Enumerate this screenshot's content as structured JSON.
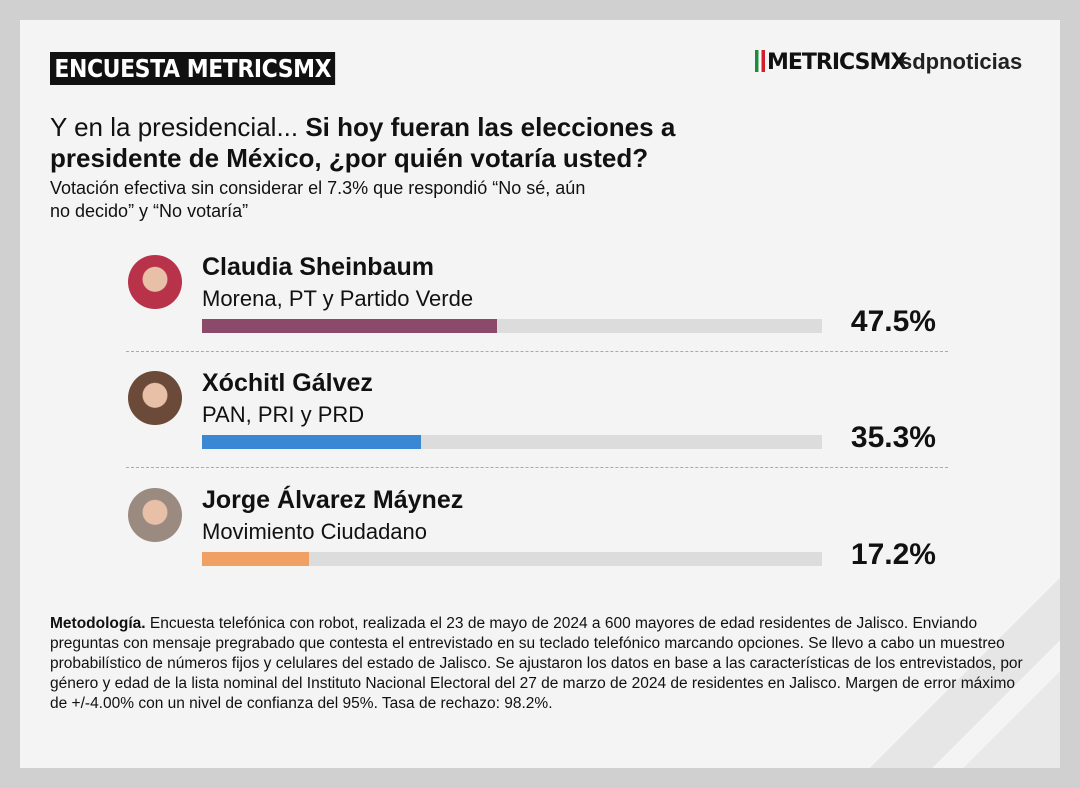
{
  "header": {
    "badge": "ENCUESTA METRICSMX",
    "logo_metrics": "METRICSMX",
    "logo_sdp": "sdpnoticias"
  },
  "question": {
    "lead": "Y en la presidencial... ",
    "bold": "Si hoy fueran las elecciones a presidente de México, ¿por quién votaría usted?"
  },
  "subtitle": "Votación efectiva sin considerar el 7.3% que respondió “No sé, aún no decido” y “No votaría”",
  "chart_data": {
    "type": "bar",
    "orientation": "horizontal",
    "xlim": [
      0,
      100
    ],
    "categories": [
      "Claudia Sheinbaum",
      "Xóchitl Gálvez",
      "Jorge Álvarez Máynez"
    ],
    "parties": [
      "Morena, PT y Partido Verde",
      "PAN, PRI y PRD",
      "Movimiento Ciudadano"
    ],
    "values": [
      47.5,
      35.3,
      17.2
    ],
    "labels": [
      "47.5%",
      "35.3%",
      "17.2%"
    ],
    "colors": [
      "#8c4a6a",
      "#3a87d4",
      "#f0a064"
    ]
  },
  "methodology": {
    "bold": "Metodología.",
    "text": " Encuesta telefónica con robot, realizada el 23 de mayo de 2024 a 600 mayores de edad residentes de Jalisco. Enviando preguntas con mensaje pregrabado que contesta el entrevistado en su teclado telefónico marcando opciones. Se llevo a cabo un muestreo probabilístico de números fijos y celulares del estado de Jalisco. Se ajustaron los datos en base a las características de los entrevistados, por género y edad de la lista nominal del Instituto Nacional Electoral del 27 de marzo de 2024 de residentes en Jalisco. Margen de error máximo de +/-4.00% con un nivel de confianza del 95%. Tasa de rechazo: 98.2%."
  }
}
